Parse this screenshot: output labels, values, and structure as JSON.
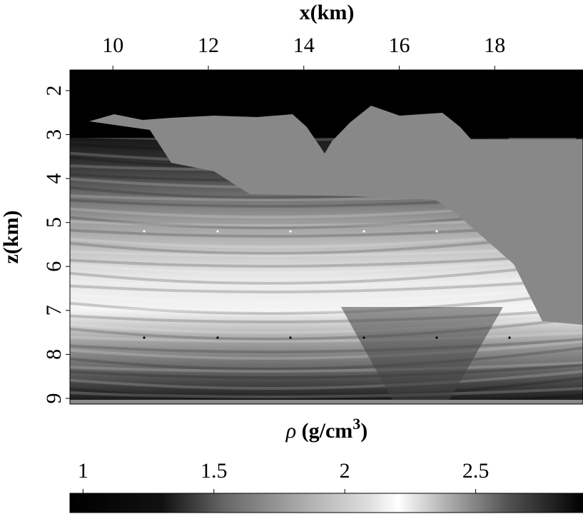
{
  "chart_data": {
    "type": "image",
    "x_label": "x(km)",
    "y_label": "z(km)",
    "colorbar_label": {
      "symbol": "ρ",
      "unit": "(g/cm",
      "exponent": "3",
      "close": ")"
    },
    "xlim": [
      9.1,
      19.85
    ],
    "xticks": [
      10,
      12,
      14,
      16,
      18
    ],
    "ylim": [
      1.53,
      9.13
    ],
    "yticks": [
      2,
      3,
      4,
      5,
      6,
      7,
      8,
      9
    ],
    "y_direction": "down",
    "clim": [
      0.95,
      2.91
    ],
    "cticks": [
      1,
      1.5,
      2,
      2.5
    ]
  }
}
